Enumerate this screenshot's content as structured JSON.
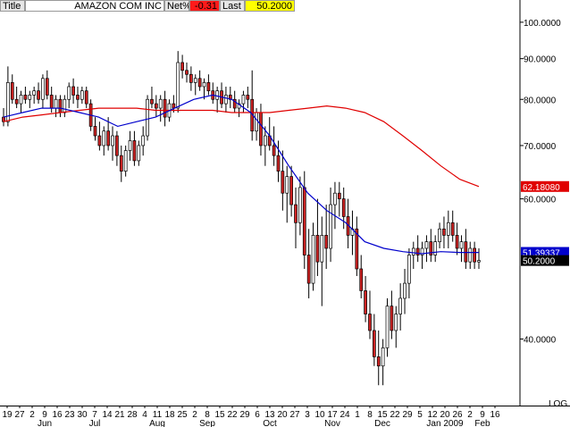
{
  "header": {
    "title_label": "Title",
    "title_value": "AMAZON COM INC",
    "net_label": "Net%",
    "net_value": "-0.31",
    "last_label": "Last",
    "last_value": "50.2000",
    "colors": {
      "net_bg": "#ff1a1a",
      "last_bg": "#ffff00"
    }
  },
  "chart_data": {
    "type": "candlestick",
    "scale": "log",
    "ylim": [
      33,
      105
    ],
    "y_ticks": [
      {
        "value": 100,
        "label": "100.0000"
      },
      {
        "value": 90,
        "label": "90.0000"
      },
      {
        "value": 80,
        "label": "80.0000"
      },
      {
        "value": 70,
        "label": "70.0000"
      },
      {
        "value": 60,
        "label": "60.0000"
      },
      {
        "value": 40,
        "label": "40.0000"
      }
    ],
    "scale_label": "LOG",
    "x_day_labels": [
      "19",
      "27",
      "2",
      "9",
      "16",
      "23",
      "30",
      "7",
      "14",
      "21",
      "28",
      "4",
      "11",
      "18",
      "25",
      "2",
      "8",
      "15",
      "22",
      "29",
      "6",
      "13",
      "20",
      "27",
      "3",
      "10",
      "17",
      "24",
      "1",
      "8",
      "15",
      "22",
      "29",
      "5",
      "12",
      "20",
      "26",
      "2",
      "9",
      "16"
    ],
    "x_month_labels": [
      "Jun",
      "Jul",
      "Aug",
      "Sep",
      "Oct",
      "Nov",
      "Dec",
      "Jan 2009",
      "Feb"
    ],
    "markers": [
      {
        "label": "62.18080",
        "value": 62.1808,
        "color": "#e00000",
        "text_color": "#ffffff"
      },
      {
        "label": "51.39337",
        "value": 51.39337,
        "color": "#0000cc",
        "text_color": "#ffffff"
      },
      {
        "label": "50.2000",
        "value": 50.2,
        "color": "#000000",
        "text_color": "#ffffff"
      }
    ],
    "series": [
      {
        "type": "candlestick",
        "up_color": "#ffffff",
        "down_color": "#cc2222",
        "ohlc": [
          [
            76,
            78,
            74,
            75
          ],
          [
            75,
            88,
            74,
            84
          ],
          [
            84,
            86,
            79,
            80
          ],
          [
            80,
            83,
            78,
            79
          ],
          [
            79,
            82,
            77,
            81
          ],
          [
            81,
            83,
            79,
            80
          ],
          [
            80,
            82,
            78,
            81
          ],
          [
            81,
            83,
            79,
            82
          ],
          [
            82,
            84,
            79,
            80
          ],
          [
            80,
            86,
            78,
            85
          ],
          [
            85,
            87,
            80,
            81
          ],
          [
            81,
            83,
            77,
            78
          ],
          [
            78,
            81,
            76,
            80
          ],
          [
            80,
            81,
            76,
            77
          ],
          [
            77,
            81,
            76,
            80
          ],
          [
            80,
            84,
            78,
            83
          ],
          [
            83,
            85,
            79,
            81
          ],
          [
            81,
            83,
            78,
            80
          ],
          [
            80,
            83,
            79,
            82
          ],
          [
            82,
            83,
            78,
            79
          ],
          [
            79,
            80,
            73,
            74
          ],
          [
            74,
            76,
            71,
            72
          ],
          [
            72,
            75,
            69,
            70
          ],
          [
            70,
            74,
            68,
            73
          ],
          [
            73,
            76,
            69,
            70
          ],
          [
            70,
            74,
            67,
            72
          ],
          [
            72,
            73,
            66,
            68
          ],
          [
            68,
            70,
            63,
            65
          ],
          [
            65,
            70,
            64,
            69
          ],
          [
            69,
            73,
            67,
            71
          ],
          [
            71,
            73,
            66,
            67
          ],
          [
            67,
            71,
            66,
            70
          ],
          [
            70,
            74,
            68,
            72
          ],
          [
            72,
            81,
            71,
            80
          ],
          [
            80,
            83,
            78,
            79
          ],
          [
            79,
            81,
            76,
            78
          ],
          [
            78,
            81,
            75,
            80
          ],
          [
            80,
            82,
            74,
            76
          ],
          [
            76,
            80,
            75,
            79
          ],
          [
            79,
            81,
            77,
            78
          ],
          [
            78,
            92,
            77,
            89
          ],
          [
            89,
            91,
            85,
            87
          ],
          [
            87,
            89,
            84,
            86
          ],
          [
            86,
            88,
            82,
            84
          ],
          [
            84,
            86,
            81,
            85
          ],
          [
            85,
            87,
            82,
            83
          ],
          [
            83,
            85,
            80,
            84
          ],
          [
            84,
            86,
            81,
            82
          ],
          [
            82,
            84,
            79,
            80
          ],
          [
            80,
            83,
            77,
            82
          ],
          [
            82,
            84,
            78,
            79
          ],
          [
            79,
            83,
            77,
            81
          ],
          [
            81,
            83,
            78,
            80
          ],
          [
            80,
            82,
            77,
            78
          ],
          [
            78,
            80,
            76,
            79
          ],
          [
            79,
            82,
            77,
            81
          ],
          [
            81,
            83,
            78,
            80
          ],
          [
            80,
            87,
            71,
            73
          ],
          [
            73,
            78,
            71,
            77
          ],
          [
            77,
            79,
            68,
            70
          ],
          [
            70,
            74,
            66,
            72
          ],
          [
            72,
            76,
            69,
            70
          ],
          [
            70,
            74,
            66,
            68
          ],
          [
            68,
            71,
            63,
            65
          ],
          [
            65,
            69,
            58,
            61
          ],
          [
            61,
            66,
            56,
            64
          ],
          [
            64,
            66,
            57,
            59
          ],
          [
            59,
            62,
            52,
            56
          ],
          [
            56,
            64,
            54,
            62
          ],
          [
            62,
            65,
            49,
            51
          ],
          [
            51,
            55,
            45,
            47
          ],
          [
            47,
            56,
            46,
            54
          ],
          [
            54,
            60,
            48,
            50
          ],
          [
            50,
            57,
            44,
            54
          ],
          [
            54,
            59,
            49,
            52
          ],
          [
            52,
            62,
            50,
            59
          ],
          [
            59,
            63,
            55,
            61
          ],
          [
            61,
            63,
            57,
            60
          ],
          [
            60,
            62,
            55,
            57
          ],
          [
            57,
            60,
            52,
            54
          ],
          [
            54,
            58,
            51,
            55
          ],
          [
            55,
            57,
            48,
            49
          ],
          [
            49,
            51,
            45,
            46
          ],
          [
            46,
            48,
            42,
            43
          ],
          [
            43,
            46,
            40,
            41
          ],
          [
            41,
            43,
            37,
            38
          ],
          [
            38,
            41,
            35,
            37
          ],
          [
            37,
            40,
            35,
            39
          ],
          [
            39,
            45,
            38,
            44
          ],
          [
            44,
            46,
            40,
            41
          ],
          [
            41,
            44,
            39,
            43
          ],
          [
            43,
            47,
            41,
            45
          ],
          [
            45,
            49,
            43,
            47
          ],
          [
            47,
            52,
            45,
            51
          ],
          [
            51,
            53,
            49,
            52
          ],
          [
            52,
            54,
            50,
            51
          ],
          [
            51,
            53,
            49,
            52
          ],
          [
            52,
            54,
            50,
            53
          ],
          [
            53,
            55,
            50,
            51
          ],
          [
            51,
            54,
            50,
            53
          ],
          [
            53,
            56,
            52,
            55
          ],
          [
            55,
            57,
            52,
            54
          ],
          [
            54,
            58,
            52,
            56
          ],
          [
            56,
            58,
            53,
            54
          ],
          [
            54,
            56,
            51,
            52
          ],
          [
            52,
            54,
            50,
            53
          ],
          [
            53,
            55,
            49,
            50
          ],
          [
            50,
            53,
            49,
            52
          ],
          [
            52,
            53,
            49,
            50
          ],
          [
            50,
            52,
            49,
            50.2
          ]
        ]
      },
      {
        "type": "line",
        "color": "#e00000",
        "values": [
          75,
          76,
          76.5,
          77,
          77.5,
          78,
          78,
          78,
          77.5,
          77.5,
          77.5,
          77.5,
          77,
          77,
          77,
          77.5,
          78,
          78.5,
          78,
          77,
          75,
          72,
          69,
          66,
          63.5,
          62.18
        ]
      },
      {
        "type": "line",
        "color": "#0000cc",
        "values": [
          76,
          77,
          78,
          78,
          77,
          76,
          74,
          75,
          76,
          78,
          80,
          81,
          80,
          77,
          72,
          66,
          61,
          58,
          56,
          53,
          52,
          51.5,
          51.2,
          51.5,
          51.39,
          51.39
        ]
      }
    ]
  }
}
